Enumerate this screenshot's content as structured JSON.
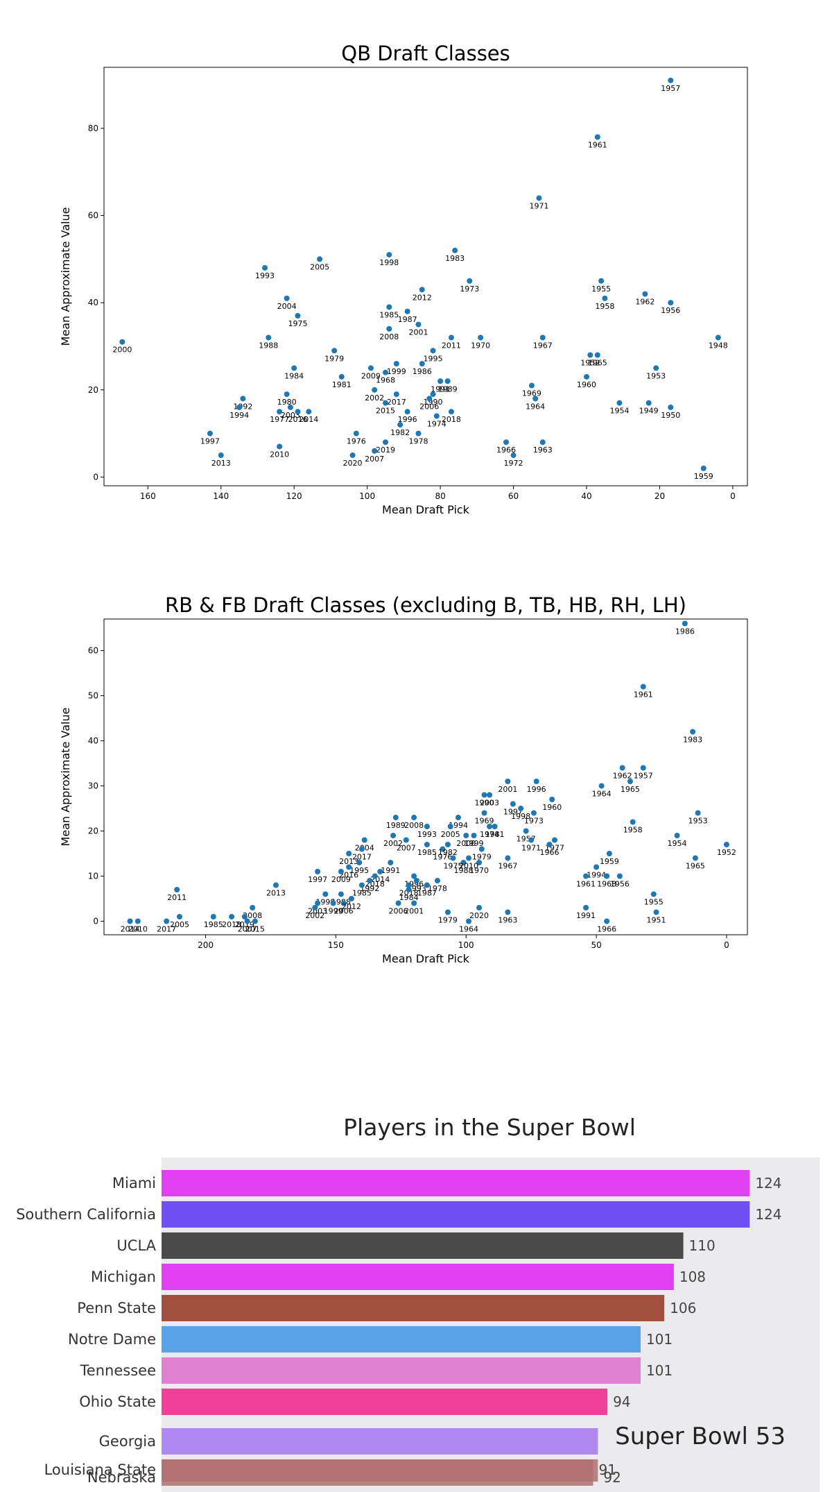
{
  "chart_data": [
    {
      "type": "scatter",
      "title": "QB Draft Classes",
      "xlabel": "Mean Draft Pick",
      "ylabel": "Mean Approximate Value",
      "xlim": [
        172,
        -4
      ],
      "ylim": [
        -2,
        94
      ],
      "xticks": [
        160,
        140,
        120,
        100,
        80,
        60,
        40,
        20,
        0
      ],
      "yticks": [
        0,
        20,
        40,
        60,
        80
      ],
      "color": "#1f77b4",
      "points": [
        {
          "label": "1957",
          "x": 17,
          "y": 91
        },
        {
          "label": "1961",
          "x": 37,
          "y": 78
        },
        {
          "label": "1971",
          "x": 53,
          "y": 64
        },
        {
          "label": "2005",
          "x": 113,
          "y": 50
        },
        {
          "label": "1998",
          "x": 94,
          "y": 51
        },
        {
          "label": "1983",
          "x": 76,
          "y": 52
        },
        {
          "label": "1993",
          "x": 128,
          "y": 48
        },
        {
          "label": "1973",
          "x": 72,
          "y": 45
        },
        {
          "label": "1955",
          "x": 36,
          "y": 45
        },
        {
          "label": "2012",
          "x": 85,
          "y": 43
        },
        {
          "label": "2004",
          "x": 122,
          "y": 41
        },
        {
          "label": "1962",
          "x": 24,
          "y": 42
        },
        {
          "label": "1958",
          "x": 35,
          "y": 41
        },
        {
          "label": "1956",
          "x": 17,
          "y": 40
        },
        {
          "label": "1985",
          "x": 94,
          "y": 39
        },
        {
          "label": "1987",
          "x": 89,
          "y": 38
        },
        {
          "label": "1975",
          "x": 119,
          "y": 37
        },
        {
          "label": "2001",
          "x": 86,
          "y": 35
        },
        {
          "label": "2008",
          "x": 94,
          "y": 34
        },
        {
          "label": "1988",
          "x": 127,
          "y": 32
        },
        {
          "label": "2011",
          "x": 77,
          "y": 32
        },
        {
          "label": "1970",
          "x": 69,
          "y": 32
        },
        {
          "label": "1967",
          "x": 52,
          "y": 32
        },
        {
          "label": "2000",
          "x": 167,
          "y": 31
        },
        {
          "label": "1948",
          "x": 4,
          "y": 32
        },
        {
          "label": "1979",
          "x": 109,
          "y": 29
        },
        {
          "label": "1995",
          "x": 82,
          "y": 29
        },
        {
          "label": "1952",
          "x": 39,
          "y": 28
        },
        {
          "label": "1965",
          "x": 37,
          "y": 28
        },
        {
          "label": "1999",
          "x": 92,
          "y": 26
        },
        {
          "label": "1986",
          "x": 85,
          "y": 26
        },
        {
          "label": "2009",
          "x": 99,
          "y": 25
        },
        {
          "label": "1953",
          "x": 21,
          "y": 25
        },
        {
          "label": "1984",
          "x": 120,
          "y": 25
        },
        {
          "label": "1968",
          "x": 95,
          "y": 24
        },
        {
          "label": "1960",
          "x": 40,
          "y": 23
        },
        {
          "label": "1981",
          "x": 107,
          "y": 23
        },
        {
          "label": "1991",
          "x": 80,
          "y": 22
        },
        {
          "label": "1989",
          "x": 78,
          "y": 22
        },
        {
          "label": "1969",
          "x": 55,
          "y": 21
        },
        {
          "label": "2002",
          "x": 98,
          "y": 20
        },
        {
          "label": "1990",
          "x": 82,
          "y": 19
        },
        {
          "label": "2017",
          "x": 92,
          "y": 19
        },
        {
          "label": "1980",
          "x": 122,
          "y": 19
        },
        {
          "label": "1992",
          "x": 134,
          "y": 18
        },
        {
          "label": "2006",
          "x": 83,
          "y": 18
        },
        {
          "label": "2015",
          "x": 95,
          "y": 17
        },
        {
          "label": "1964",
          "x": 54,
          "y": 18
        },
        {
          "label": "1954",
          "x": 31,
          "y": 17
        },
        {
          "label": "1949",
          "x": 23,
          "y": 17
        },
        {
          "label": "1950",
          "x": 17,
          "y": 16
        },
        {
          "label": "2003",
          "x": 121,
          "y": 16
        },
        {
          "label": "1977",
          "x": 124,
          "y": 15
        },
        {
          "label": "2016",
          "x": 119,
          "y": 15
        },
        {
          "label": "2014",
          "x": 116,
          "y": 15
        },
        {
          "label": "1994",
          "x": 135,
          "y": 16
        },
        {
          "label": "1996",
          "x": 89,
          "y": 15
        },
        {
          "label": "1974",
          "x": 81,
          "y": 14
        },
        {
          "label": "2018",
          "x": 77,
          "y": 15
        },
        {
          "label": "1982",
          "x": 91,
          "y": 12
        },
        {
          "label": "1976",
          "x": 103,
          "y": 10
        },
        {
          "label": "1978",
          "x": 86,
          "y": 10
        },
        {
          "label": "1997",
          "x": 143,
          "y": 10
        },
        {
          "label": "2019",
          "x": 95,
          "y": 8
        },
        {
          "label": "1966",
          "x": 62,
          "y": 8
        },
        {
          "label": "1963",
          "x": 52,
          "y": 8
        },
        {
          "label": "2010",
          "x": 124,
          "y": 7
        },
        {
          "label": "2007",
          "x": 98,
          "y": 6
        },
        {
          "label": "1972",
          "x": 60,
          "y": 5
        },
        {
          "label": "2013",
          "x": 140,
          "y": 5
        },
        {
          "label": "2020",
          "x": 104,
          "y": 5
        },
        {
          "label": "1959",
          "x": 8,
          "y": 2
        }
      ]
    },
    {
      "type": "scatter",
      "title": "RB & FB Draft Classes (excluding B, TB, HB, RH, LH)",
      "xlabel": "Mean Draft Pick",
      "ylabel": "Mean Approximate Value",
      "xlim": [
        239,
        -8
      ],
      "ylim": [
        -3,
        67
      ],
      "xticks": [
        200,
        150,
        100,
        50,
        0
      ],
      "yticks": [
        0,
        10,
        20,
        30,
        40,
        50,
        60
      ],
      "color": "#1f77b4",
      "points": [
        {
          "label": "1986",
          "x": 16,
          "y": 66
        },
        {
          "label": "1961",
          "x": 32,
          "y": 52
        },
        {
          "label": "1983",
          "x": 13,
          "y": 42
        },
        {
          "label": "1962",
          "x": 40,
          "y": 34
        },
        {
          "label": "1957",
          "x": 32,
          "y": 34
        },
        {
          "label": "1965",
          "x": 37,
          "y": 31
        },
        {
          "label": "1964",
          "x": 48,
          "y": 30
        },
        {
          "label": "2001",
          "x": 84,
          "y": 31
        },
        {
          "label": "1996",
          "x": 73,
          "y": 31
        },
        {
          "label": "1990",
          "x": 93,
          "y": 28
        },
        {
          "label": "2003",
          "x": 91,
          "y": 28
        },
        {
          "label": "1960",
          "x": 67,
          "y": 27
        },
        {
          "label": "1997",
          "x": 82,
          "y": 26
        },
        {
          "label": "1998",
          "x": 79,
          "y": 25
        },
        {
          "label": "1973",
          "x": 74,
          "y": 24
        },
        {
          "label": "1953",
          "x": 11,
          "y": 24
        },
        {
          "label": "1969",
          "x": 93,
          "y": 24
        },
        {
          "label": "1994",
          "x": 103,
          "y": 23
        },
        {
          "label": "1989",
          "x": 127,
          "y": 23
        },
        {
          "label": "2008",
          "x": 120,
          "y": 23
        },
        {
          "label": "1993",
          "x": 115,
          "y": 21
        },
        {
          "label": "2005",
          "x": 106,
          "y": 21
        },
        {
          "label": "1958",
          "x": 36,
          "y": 22
        },
        {
          "label": "1974",
          "x": 91,
          "y": 21
        },
        {
          "label": "1981",
          "x": 89,
          "y": 21
        },
        {
          "label": "2004",
          "x": 139,
          "y": 18
        },
        {
          "label": "2002",
          "x": 128,
          "y": 19
        },
        {
          "label": "1954",
          "x": 19,
          "y": 19
        },
        {
          "label": "1999",
          "x": 97,
          "y": 19
        },
        {
          "label": "2000",
          "x": 100,
          "y": 19
        },
        {
          "label": "1957",
          "x": 77,
          "y": 20
        },
        {
          "label": "1952",
          "x": 0,
          "y": 17
        },
        {
          "label": "1977",
          "x": 66,
          "y": 18
        },
        {
          "label": "1971",
          "x": 75,
          "y": 18
        },
        {
          "label": "1966",
          "x": 68,
          "y": 17
        },
        {
          "label": "2007",
          "x": 123,
          "y": 18
        },
        {
          "label": "2017",
          "x": 140,
          "y": 16
        },
        {
          "label": "1985",
          "x": 115,
          "y": 17
        },
        {
          "label": "1976",
          "x": 109,
          "y": 16
        },
        {
          "label": "1982",
          "x": 107,
          "y": 17
        },
        {
          "label": "1979",
          "x": 94,
          "y": 16
        },
        {
          "label": "2013",
          "x": 145,
          "y": 15
        },
        {
          "label": "1959",
          "x": 45,
          "y": 15
        },
        {
          "label": "1965",
          "x": 12,
          "y": 14
        },
        {
          "label": "1975",
          "x": 105,
          "y": 14
        },
        {
          "label": "1988",
          "x": 101,
          "y": 13
        },
        {
          "label": "1967",
          "x": 84,
          "y": 14
        },
        {
          "label": "1970",
          "x": 95,
          "y": 13
        },
        {
          "label": "2010",
          "x": 99,
          "y": 14
        },
        {
          "label": "1991",
          "x": 129,
          "y": 13
        },
        {
          "label": "1995",
          "x": 141,
          "y": 13
        },
        {
          "label": "2016",
          "x": 145,
          "y": 12
        },
        {
          "label": "2014",
          "x": 133,
          "y": 11
        },
        {
          "label": "2009",
          "x": 148,
          "y": 11
        },
        {
          "label": "1994",
          "x": 50,
          "y": 12
        },
        {
          "label": "2018",
          "x": 135,
          "y": 10
        },
        {
          "label": "1997",
          "x": 157,
          "y": 11
        },
        {
          "label": "1996",
          "x": 120,
          "y": 10
        },
        {
          "label": "1956",
          "x": 41,
          "y": 10
        },
        {
          "label": "1968",
          "x": 46,
          "y": 10
        },
        {
          "label": "1961",
          "x": 54,
          "y": 10
        },
        {
          "label": "1992",
          "x": 137,
          "y": 9
        },
        {
          "label": "1978",
          "x": 111,
          "y": 9
        },
        {
          "label": "1993",
          "x": 119,
          "y": 9
        },
        {
          "label": "2018",
          "x": 122,
          "y": 8
        },
        {
          "label": "1987",
          "x": 115,
          "y": 8
        },
        {
          "label": "2013",
          "x": 173,
          "y": 8
        },
        {
          "label": "1985",
          "x": 140,
          "y": 8
        },
        {
          "label": "1984",
          "x": 122,
          "y": 7
        },
        {
          "label": "2011",
          "x": 211,
          "y": 7
        },
        {
          "label": "1988",
          "x": 148,
          "y": 6
        },
        {
          "label": "1955",
          "x": 28,
          "y": 6
        },
        {
          "label": "1998",
          "x": 154,
          "y": 6
        },
        {
          "label": "2003",
          "x": 157,
          "y": 4
        },
        {
          "label": "2006",
          "x": 147,
          "y": 4
        },
        {
          "label": "2012",
          "x": 144,
          "y": 5
        },
        {
          "label": "1999",
          "x": 151,
          "y": 4
        },
        {
          "label": "2001",
          "x": 120,
          "y": 4
        },
        {
          "label": "2006",
          "x": 126,
          "y": 4
        },
        {
          "label": "1991",
          "x": 54,
          "y": 3
        },
        {
          "label": "2020",
          "x": 95,
          "y": 3
        },
        {
          "label": "1963",
          "x": 84,
          "y": 2
        },
        {
          "label": "1979",
          "x": 107,
          "y": 2
        },
        {
          "label": "1951",
          "x": 27,
          "y": 2
        },
        {
          "label": "2002",
          "x": 158,
          "y": 3
        },
        {
          "label": "2008",
          "x": 182,
          "y": 3
        },
        {
          "label": "2018",
          "x": 190,
          "y": 1
        },
        {
          "label": "1985",
          "x": 197,
          "y": 1
        },
        {
          "label": "2019",
          "x": 185,
          "y": 1
        },
        {
          "label": "2007",
          "x": 184,
          "y": 0
        },
        {
          "label": "2015",
          "x": 181,
          "y": 0
        },
        {
          "label": "2005",
          "x": 210,
          "y": 1
        },
        {
          "label": "2017",
          "x": 215,
          "y": 0
        },
        {
          "label": "2014",
          "x": 229,
          "y": 0
        },
        {
          "label": "2010",
          "x": 226,
          "y": 0
        },
        {
          "label": "1964",
          "x": 99,
          "y": 0
        },
        {
          "label": "1966",
          "x": 46,
          "y": 0
        }
      ]
    },
    {
      "type": "bar",
      "orientation": "horizontal",
      "title": "Players in the Super Bowl",
      "overlay_text": "Super Bowl 53",
      "xlim": [
        0,
        126
      ],
      "categories": [
        "Miami",
        "Southern California",
        "UCLA",
        "Michigan",
        "Penn State",
        "Notre Dame",
        "Tennessee",
        "Ohio State",
        "Georgia",
        "Louisiana State",
        "Nebraska"
      ],
      "values": [
        124,
        124,
        110,
        108,
        106,
        101,
        101,
        94,
        92,
        91,
        92
      ],
      "value_labels": [
        "124",
        "124",
        "110",
        "108",
        "106",
        "101",
        "101",
        "94",
        "",
        "91",
        "92"
      ],
      "colors": [
        "#e040f0",
        "#7050f5",
        "#4a4a4a",
        "#e040f0",
        "#a0503c",
        "#5aa2e8",
        "#e080d0",
        "#f0409a",
        "#b088f0",
        "#b07070",
        "#b07070"
      ]
    }
  ]
}
